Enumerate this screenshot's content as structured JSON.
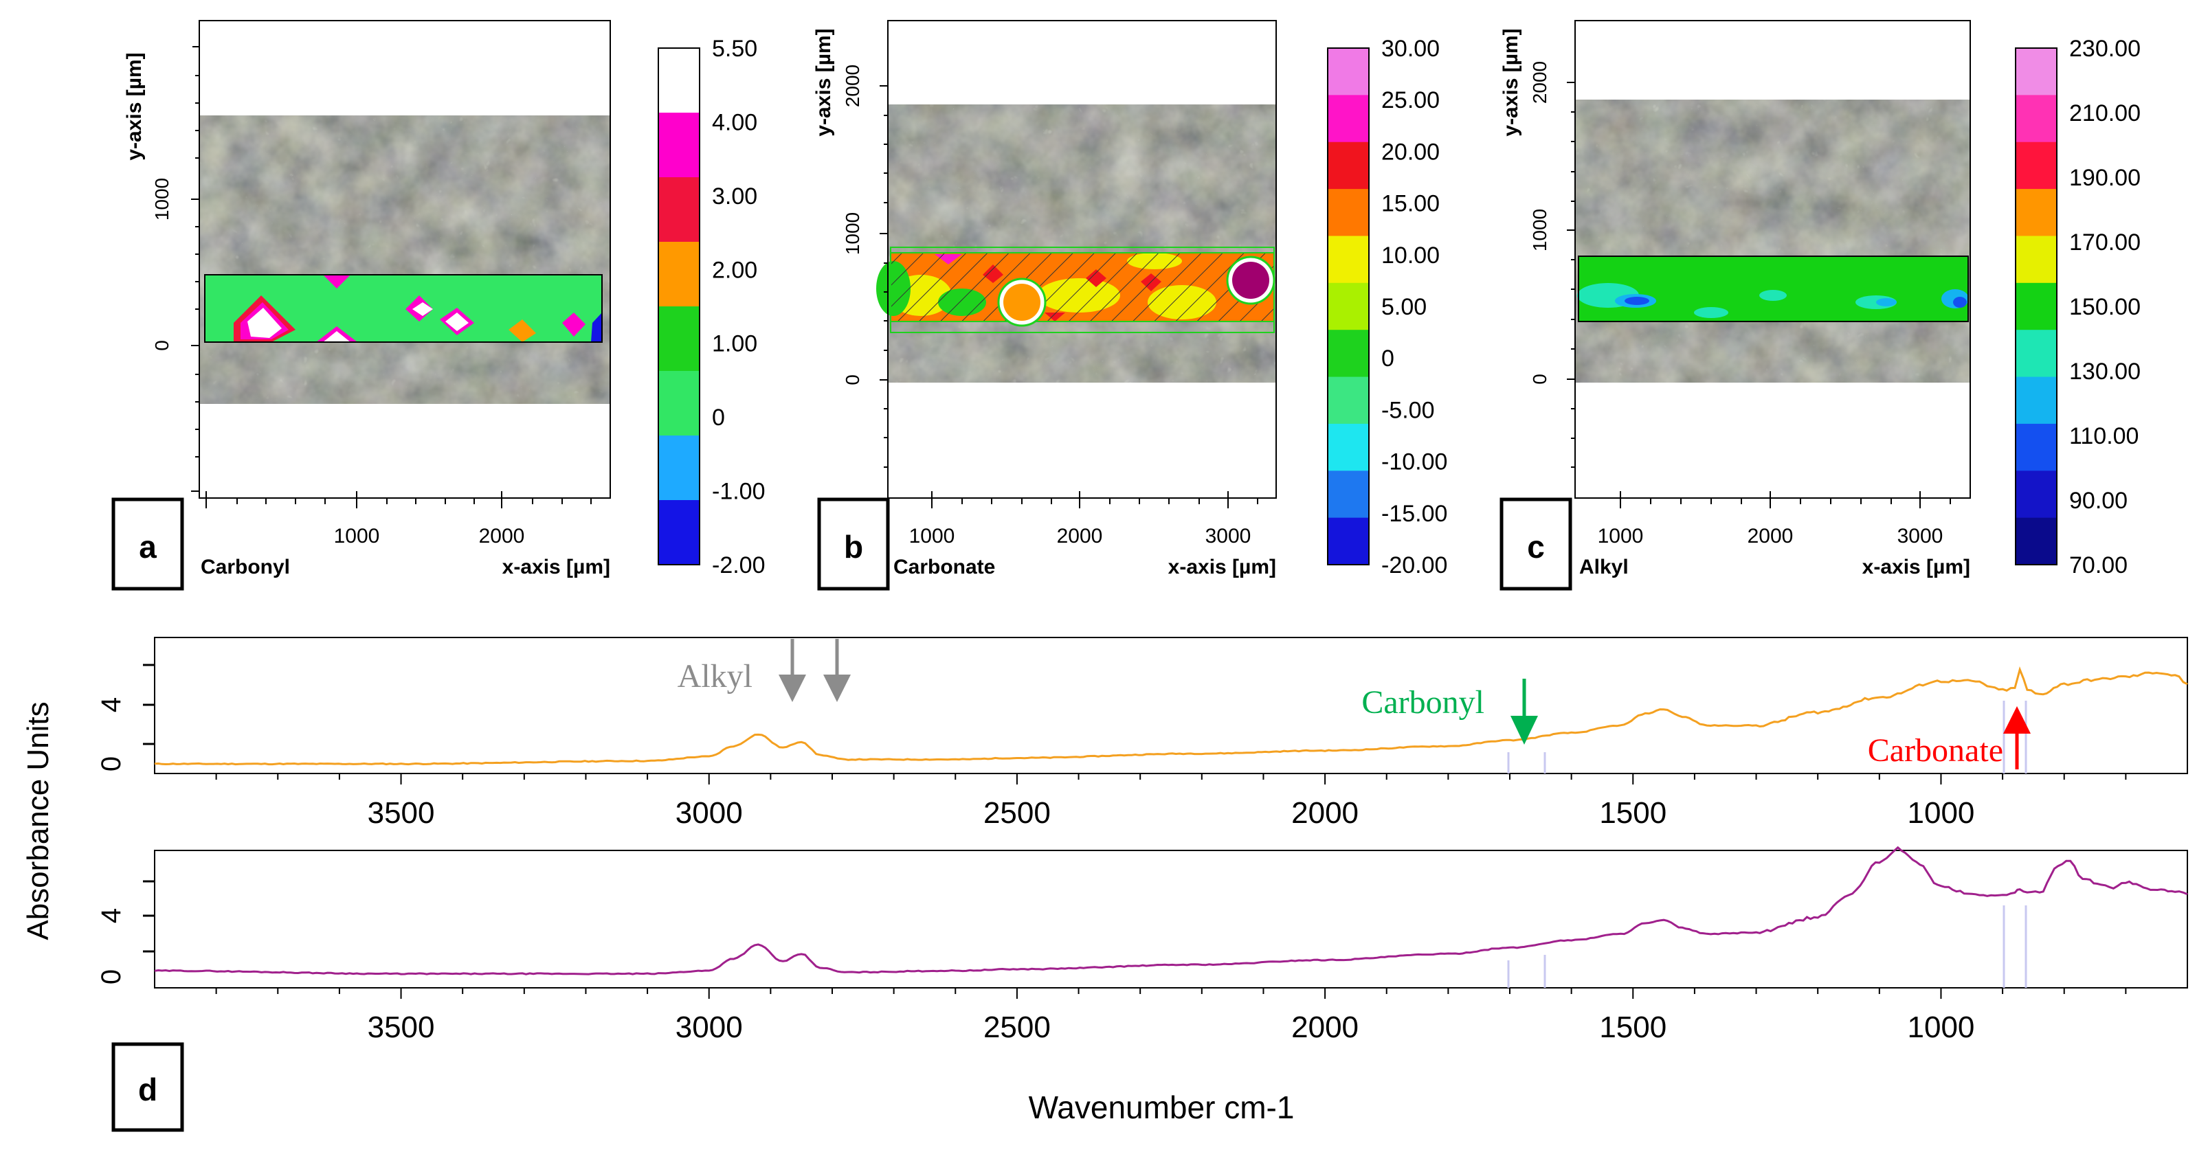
{
  "chart_data": [
    {
      "type": "heatmap",
      "panel_label": "a",
      "map_label": "Carbonyl",
      "ylabel": "y-axis [µm]",
      "xlabel": "x-axis [µm]",
      "xticks": [
        "1000",
        "2000"
      ],
      "yticks": [
        "1000",
        "0"
      ],
      "colorbar": {
        "labels": [
          "5.50",
          "4.00",
          "3.00",
          "2.00",
          "1.00",
          "0",
          "-1.00",
          "-2.00"
        ],
        "colors": [
          "#ffffff",
          "#ff00cc",
          "#f0143c",
          "#ff9900",
          "#1ed21e",
          "#32e664",
          "#1eaaff",
          "#1414e6"
        ]
      }
    },
    {
      "type": "heatmap",
      "panel_label": "b",
      "map_label": "Carbonate",
      "ylabel": "y-axis [µm]",
      "xlabel": "x-axis [µm]",
      "xticks": [
        "1000",
        "2000",
        "3000"
      ],
      "yticks": [
        "2000",
        "1000",
        "0"
      ],
      "colorbar": {
        "labels": [
          "30.00",
          "25.00",
          "20.00",
          "15.00",
          "10.00",
          "5.00",
          "0",
          "-5.00",
          "-10.00",
          "-15.00",
          "-20.00"
        ],
        "colors": [
          "#f07ae6",
          "#ff14c8",
          "#f0141e",
          "#ff7800",
          "#f0f000",
          "#aaf000",
          "#1ed21e",
          "#3ce682",
          "#1ee6f0",
          "#1e78f0",
          "#1414dc"
        ]
      }
    },
    {
      "type": "heatmap",
      "panel_label": "c",
      "map_label": "Alkyl",
      "ylabel": "y-axis [µm]",
      "xlabel": "x-axis [µm]",
      "xticks": [
        "1000",
        "2000",
        "3000"
      ],
      "yticks": [
        "2000",
        "1000",
        "0"
      ],
      "colorbar": {
        "labels": [
          "230.00",
          "210.00",
          "190.00",
          "170.00",
          "150.00",
          "130.00",
          "110.00",
          "90.00",
          "70.00"
        ],
        "colors": [
          "#f08ce6",
          "#ff32b4",
          "#ff143c",
          "#ff9600",
          "#e6f000",
          "#14d214",
          "#1ee6b4",
          "#14b4f0",
          "#1450f0",
          "#1414c8",
          "#0a0a8c"
        ]
      }
    },
    {
      "type": "line",
      "panel_label": "d",
      "ylabel": "Absorbance Units",
      "xlabel": "Wavenumber cm-1",
      "xlim": [
        3900,
        600
      ],
      "xticks": [
        "3500",
        "3000",
        "2500",
        "2000",
        "1500",
        "1000"
      ],
      "yticks": [
        "4",
        "0"
      ],
      "annotations": [
        {
          "label": "Alkyl",
          "at": [
            2920,
            2850
          ],
          "color": "#8c8c8c"
        },
        {
          "label": "Carbonyl",
          "at": [
            1700
          ],
          "color": "#00b050"
        },
        {
          "label": "Carbonate",
          "at": [
            872
          ],
          "color": "#ff0000"
        }
      ],
      "series": [
        {
          "name": "top spectrum",
          "color": "#f4a020",
          "x": [
            3900,
            3500,
            3100,
            3000,
            2960,
            2920,
            2880,
            2850,
            2820,
            2780,
            2600,
            2500,
            2200,
            2000,
            1800,
            1700,
            1600,
            1520,
            1480,
            1450,
            1420,
            1380,
            1300,
            1200,
            1100,
            1000,
            950,
            900,
            880,
            872,
            860,
            840,
            800,
            750,
            700,
            650,
            620,
            600
          ],
          "y": [
            0.0,
            0.0,
            0.2,
            0.5,
            1.2,
            2.0,
            1.1,
            1.5,
            0.6,
            0.3,
            0.3,
            0.4,
            0.7,
            0.9,
            1.2,
            1.6,
            2.1,
            2.6,
            3.4,
            3.7,
            3.2,
            2.6,
            2.6,
            3.5,
            4.5,
            5.6,
            5.6,
            5.0,
            5.1,
            6.4,
            5.0,
            4.7,
            5.4,
            5.7,
            5.9,
            6.2,
            6.0,
            5.4
          ]
        },
        {
          "name": "bottom spectrum",
          "color": "#a0208c",
          "x": [
            3900,
            3500,
            3100,
            3000,
            2960,
            2920,
            2880,
            2850,
            2820,
            2780,
            2600,
            2500,
            2200,
            2000,
            1800,
            1700,
            1600,
            1520,
            1480,
            1450,
            1420,
            1380,
            1300,
            1200,
            1150,
            1100,
            1070,
            1040,
            1000,
            950,
            900,
            880,
            872,
            860,
            840,
            810,
            790,
            770,
            740,
            720,
            700,
            660,
            620,
            600
          ],
          "y": [
            0.4,
            0.2,
            0.2,
            0.4,
            1.2,
            2.1,
            1.0,
            1.5,
            0.6,
            0.3,
            0.4,
            0.5,
            0.8,
            1.1,
            1.5,
            1.9,
            2.4,
            2.8,
            3.5,
            3.7,
            3.2,
            2.8,
            2.9,
            3.9,
            5.3,
            7.5,
            8.4,
            7.5,
            5.9,
            5.4,
            5.3,
            5.5,
            5.8,
            5.5,
            5.5,
            7.3,
            7.6,
            6.4,
            6.1,
            5.8,
            6.2,
            5.7,
            5.6,
            5.4
          ]
        }
      ]
    }
  ]
}
